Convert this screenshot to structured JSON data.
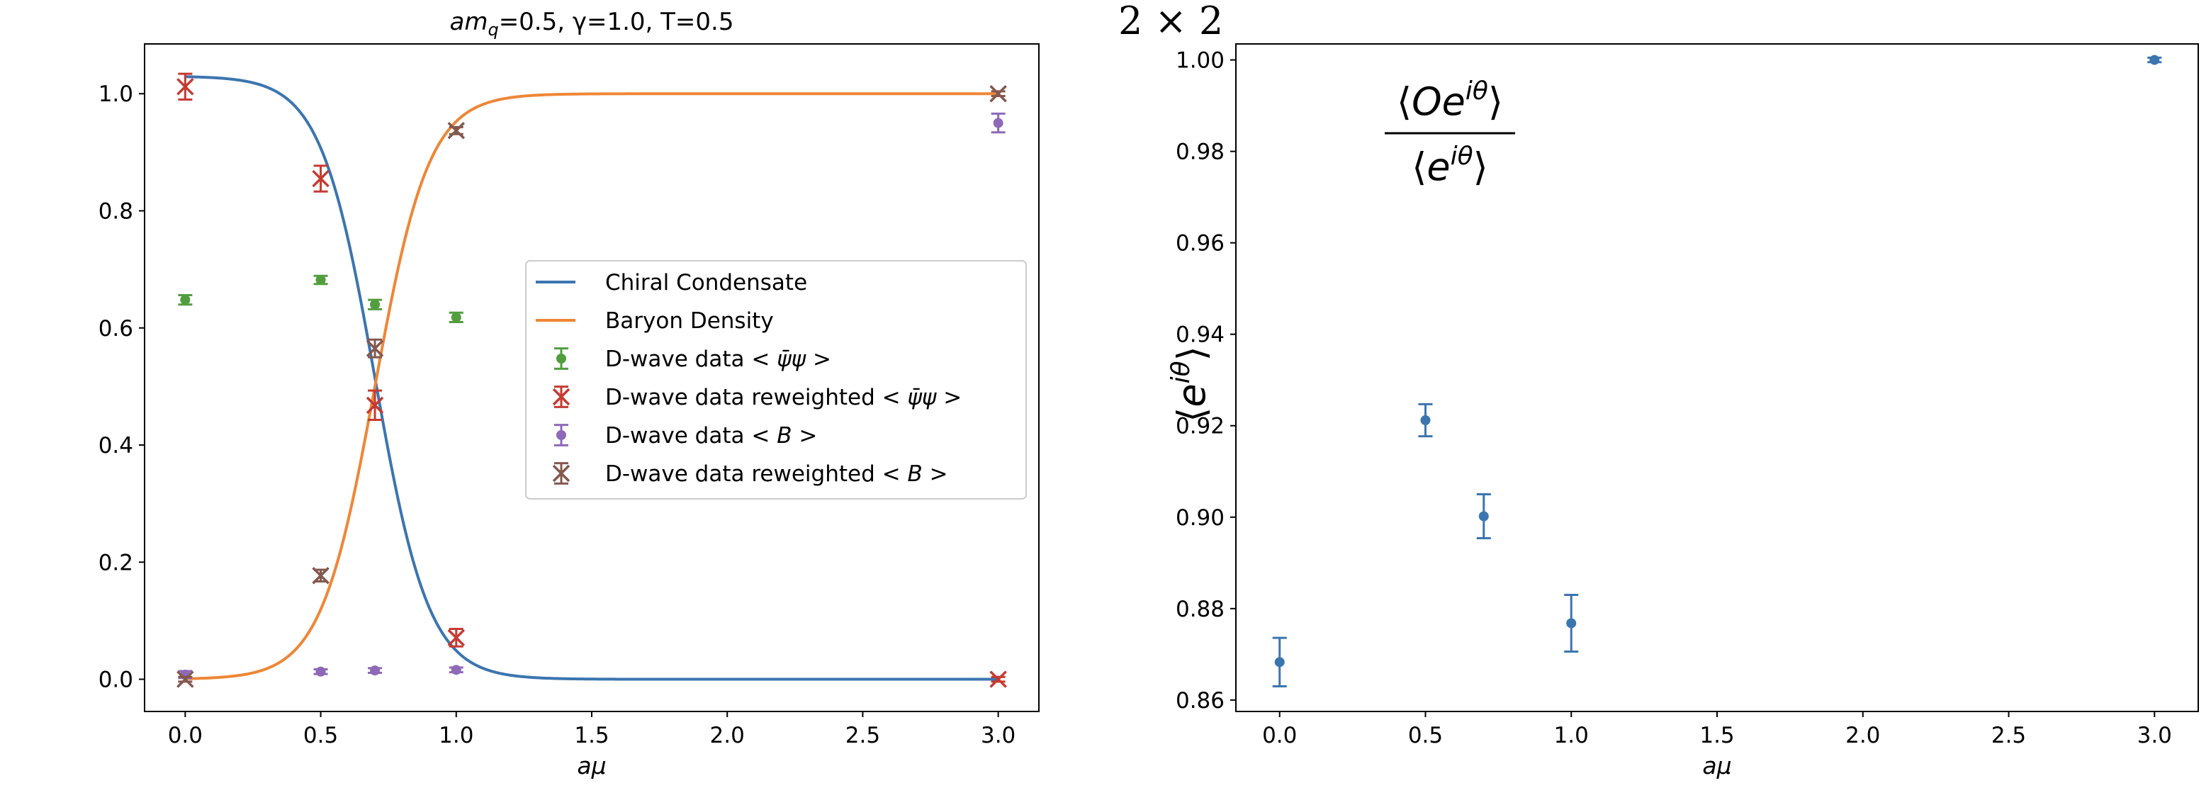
{
  "figure_label": "2 × 2",
  "chart_data": [
    {
      "type": "line",
      "title": "amq=0.5, γ=1.0, T=0.5",
      "title_parts": {
        "prefix": "am",
        "subscript": "q",
        "suffix": "=0.5, γ=1.0, T=0.5"
      },
      "xlabel": "aμ",
      "ylabel": "",
      "xlim": [
        -0.15,
        3.15
      ],
      "ylim": [
        -0.055,
        1.085
      ],
      "xticks": [
        0.0,
        0.5,
        1.0,
        1.5,
        2.0,
        2.5,
        3.0
      ],
      "xtick_labels": [
        "0.0",
        "0.5",
        "1.0",
        "1.5",
        "2.0",
        "2.5",
        "3.0"
      ],
      "yticks": [
        0.0,
        0.2,
        0.4,
        0.6,
        0.8,
        1.0
      ],
      "ytick_labels": [
        "0.0",
        "0.2",
        "0.4",
        "0.6",
        "0.8",
        "1.0"
      ],
      "grid": false,
      "legend_position": "center-right",
      "curves": [
        {
          "name": "Chiral Condensate",
          "color": "#3b75af",
          "model": "decreasing-sigmoid",
          "params": {
            "amplitude": 1.03,
            "center": 0.7,
            "width": 0.1
          }
        },
        {
          "name": "Baryon Density",
          "color": "#ef8636",
          "model": "increasing-sigmoid",
          "params": {
            "amplitude": 1.0,
            "center": 0.7,
            "width": 0.1
          }
        }
      ],
      "series": [
        {
          "name": "D-wave data   < ψ̄ψ >",
          "label_prefix": "D-wave data   <",
          "label_math": "ψ̄ψ",
          "label_suffix": ">",
          "color": "#519e3e",
          "marker": "circle",
          "points": [
            {
              "x": 0.0,
              "y": 0.648,
              "err": 0.008
            },
            {
              "x": 0.5,
              "y": 0.682,
              "err": 0.007
            },
            {
              "x": 0.7,
              "y": 0.64,
              "err": 0.008
            },
            {
              "x": 1.0,
              "y": 0.618,
              "err": 0.008
            }
          ]
        },
        {
          "name": "D-wave data reweighted  < ψ̄ψ >",
          "label_prefix": "D-wave data reweighted  <",
          "label_math": "ψ̄ψ",
          "label_suffix": ">",
          "color": "#c53a32",
          "marker": "x",
          "points": [
            {
              "x": 0.0,
              "y": 1.012,
              "err": 0.022
            },
            {
              "x": 0.5,
              "y": 0.855,
              "err": 0.022
            },
            {
              "x": 0.7,
              "y": 0.468,
              "err": 0.025
            },
            {
              "x": 1.0,
              "y": 0.071,
              "err": 0.015
            },
            {
              "x": 3.0,
              "y": 0.0,
              "err": 0.004
            }
          ]
        },
        {
          "name": "D-wave data  < B >",
          "label_prefix": "D-wave data  <",
          "label_math": "B",
          "label_suffix": ">",
          "color": "#8d69b8",
          "marker": "circle",
          "points": [
            {
              "x": 0.0,
              "y": 0.008,
              "err": 0.006
            },
            {
              "x": 0.5,
              "y": 0.013,
              "err": 0.004
            },
            {
              "x": 0.7,
              "y": 0.015,
              "err": 0.004
            },
            {
              "x": 1.0,
              "y": 0.016,
              "err": 0.004
            },
            {
              "x": 3.0,
              "y": 0.95,
              "err": 0.016
            }
          ]
        },
        {
          "name": "D-wave data reweighted  < B >",
          "label_prefix": "D-wave data reweighted  <",
          "label_math": "B",
          "label_suffix": ">",
          "color": "#84584e",
          "marker": "x",
          "points": [
            {
              "x": 0.0,
              "y": 0.0,
              "err": 0.004
            },
            {
              "x": 0.5,
              "y": 0.177,
              "err": 0.01
            },
            {
              "x": 0.7,
              "y": 0.565,
              "err": 0.015
            },
            {
              "x": 1.0,
              "y": 0.937,
              "err": 0.006
            },
            {
              "x": 3.0,
              "y": 1.0,
              "err": 0.004
            }
          ]
        }
      ]
    },
    {
      "type": "scatter",
      "title": "",
      "xlabel": "aμ",
      "ylabel": "⟨e^{iθ}⟩",
      "ylabel_parts": {
        "base": "e",
        "sup": "iθ"
      },
      "annotation": "⟨Oe^{iθ}⟩ / ⟨e^{iθ}⟩",
      "annotation_parts": {
        "numerator_base": "Oe",
        "denominator_base": "e",
        "sup": "iθ"
      },
      "xlim": [
        -0.15,
        3.15
      ],
      "ylim": [
        0.8575,
        1.0035
      ],
      "xticks": [
        0.0,
        0.5,
        1.0,
        1.5,
        2.0,
        2.5,
        3.0
      ],
      "xtick_labels": [
        "0.0",
        "0.5",
        "1.0",
        "1.5",
        "2.0",
        "2.5",
        "3.0"
      ],
      "yticks": [
        0.86,
        0.88,
        0.9,
        0.92,
        0.94,
        0.96,
        0.98,
        1.0
      ],
      "ytick_labels": [
        "0.86",
        "0.88",
        "0.90",
        "0.92",
        "0.94",
        "0.96",
        "0.98",
        "1.00"
      ],
      "grid": false,
      "series": [
        {
          "color": "#3b75af",
          "marker": "circle",
          "points": [
            {
              "x": 0.0,
              "y": 0.8683,
              "err": 0.0053
            },
            {
              "x": 0.5,
              "y": 0.9212,
              "err": 0.0035
            },
            {
              "x": 0.7,
              "y": 0.9002,
              "err": 0.0048
            },
            {
              "x": 1.0,
              "y": 0.8768,
              "err": 0.0062
            },
            {
              "x": 3.0,
              "y": 1.0,
              "err": 0.0005
            }
          ]
        }
      ]
    }
  ]
}
